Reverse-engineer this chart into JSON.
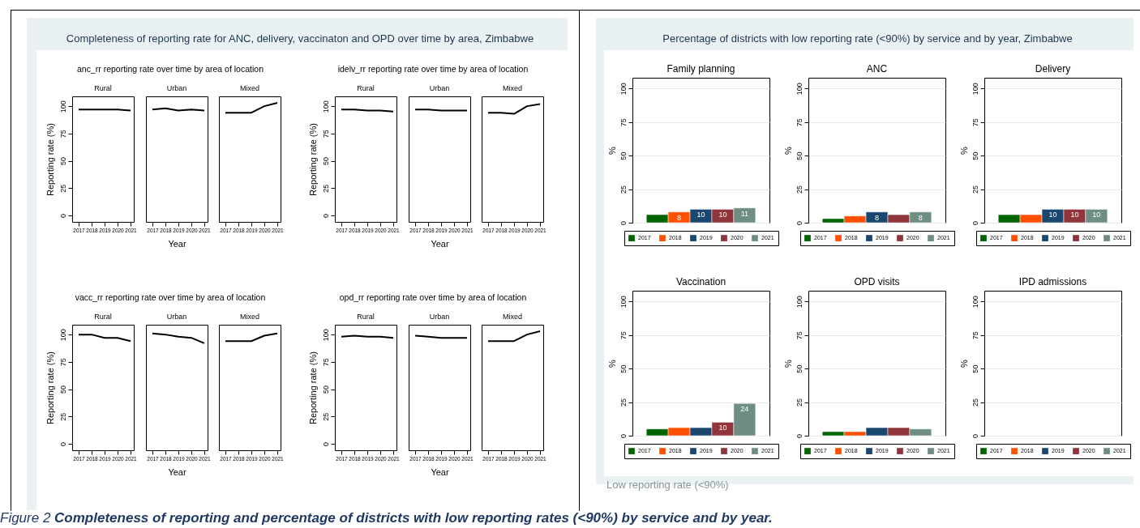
{
  "chart_data": [
    {
      "type": "line",
      "title": "Rural",
      "ylabel": "Reporting rate (%)",
      "x": [
        2017,
        2018,
        2019,
        2020,
        2021
      ],
      "xlim": [
        2016.5,
        2021.25
      ],
      "xticks": [
        2017,
        2018,
        2019,
        2020,
        2021
      ],
      "ylim": [
        -6,
        109
      ],
      "yticks": [
        0,
        25,
        50,
        75,
        100
      ],
      "annotations": [
        "Completeness of reporting rate for ANC, delivery, vaccinaton and OPD over time by area, Zimbabwe",
        "anc_rr reporting rate over time by area of location"
      ],
      "series": [
        {
          "color": "#000000",
          "values": [
            97,
            97,
            97,
            97,
            96
          ]
        }
      ]
    },
    {
      "type": "line",
      "title": "Urban",
      "xlabel": "Year",
      "x": [
        2017,
        2018,
        2019,
        2020,
        2021
      ],
      "xlim": [
        2016.5,
        2021.25
      ],
      "xticks": [
        2017,
        2018,
        2019,
        2020,
        2021
      ],
      "ylim": [
        -6,
        109
      ],
      "yticks": [
        0,
        25,
        50,
        75,
        100
      ],
      "tick_labels": "x",
      "series": [
        {
          "color": "#000000",
          "values": [
            97,
            98,
            96,
            97,
            96
          ]
        }
      ]
    },
    {
      "type": "line",
      "title": "Mixed",
      "x": [
        2017,
        2018,
        2019,
        2020,
        2021
      ],
      "xlim": [
        2016.5,
        2021.25
      ],
      "xticks": [
        2017,
        2018,
        2019,
        2020,
        2021
      ],
      "ylim": [
        -6,
        109
      ],
      "yticks": [
        0,
        25,
        50,
        75,
        100
      ],
      "tick_labels": "x",
      "series": [
        {
          "color": "#000000",
          "values": [
            94,
            94,
            94,
            100,
            103
          ]
        }
      ]
    },
    {
      "type": "line",
      "title": "Rural",
      "ylabel": "Reporting rate (%)",
      "x": [
        2017,
        2018,
        2019,
        2020,
        2021
      ],
      "xlim": [
        2016.5,
        2021.25
      ],
      "xticks": [
        2017,
        2018,
        2019,
        2020,
        2021
      ],
      "ylim": [
        -6,
        109
      ],
      "yticks": [
        0,
        25,
        50,
        75,
        100
      ],
      "annotations": [
        "idelv_rr reporting rate over time by area of location"
      ],
      "series": [
        {
          "color": "#000000",
          "values": [
            97,
            97,
            96,
            96,
            95
          ]
        }
      ]
    },
    {
      "type": "line",
      "title": "Urban",
      "xlabel": "Year",
      "x": [
        2017,
        2018,
        2019,
        2020,
        2021
      ],
      "xlim": [
        2016.5,
        2021.25
      ],
      "xticks": [
        2017,
        2018,
        2019,
        2020,
        2021
      ],
      "ylim": [
        -6,
        109
      ],
      "yticks": [
        0,
        25,
        50,
        75,
        100
      ],
      "tick_labels": "x",
      "series": [
        {
          "color": "#000000",
          "values": [
            97,
            97,
            96,
            96,
            96
          ]
        }
      ]
    },
    {
      "type": "line",
      "title": "Mixed",
      "x": [
        2017,
        2018,
        2019,
        2020,
        2021
      ],
      "xlim": [
        2016.5,
        2021.25
      ],
      "xticks": [
        2017,
        2018,
        2019,
        2020,
        2021
      ],
      "ylim": [
        -6,
        109
      ],
      "yticks": [
        0,
        25,
        50,
        75,
        100
      ],
      "tick_labels": "x",
      "series": [
        {
          "color": "#000000",
          "values": [
            94,
            94,
            93,
            100,
            102
          ]
        }
      ]
    },
    {
      "type": "line",
      "title": "Rural",
      "ylabel": "Reporting rate (%)",
      "x": [
        2017,
        2018,
        2019,
        2020,
        2021
      ],
      "xlim": [
        2016.5,
        2021.25
      ],
      "xticks": [
        2017,
        2018,
        2019,
        2020,
        2021
      ],
      "ylim": [
        -6,
        109
      ],
      "yticks": [
        0,
        25,
        50,
        75,
        100
      ],
      "annotations": [
        "vacc_rr reporting rate over time by area of location"
      ],
      "series": [
        {
          "color": "#000000",
          "values": [
            100,
            100,
            97,
            97,
            94
          ]
        }
      ]
    },
    {
      "type": "line",
      "title": "Urban",
      "xlabel": "Year",
      "x": [
        2017,
        2018,
        2019,
        2020,
        2021
      ],
      "xlim": [
        2016.5,
        2021.25
      ],
      "xticks": [
        2017,
        2018,
        2019,
        2020,
        2021
      ],
      "ylim": [
        -6,
        109
      ],
      "yticks": [
        0,
        25,
        50,
        75,
        100
      ],
      "tick_labels": "x",
      "series": [
        {
          "color": "#000000",
          "values": [
            101,
            100,
            98,
            97,
            92
          ]
        }
      ]
    },
    {
      "type": "line",
      "title": "Mixed",
      "x": [
        2017,
        2018,
        2019,
        2020,
        2021
      ],
      "xlim": [
        2016.5,
        2021.25
      ],
      "xticks": [
        2017,
        2018,
        2019,
        2020,
        2021
      ],
      "ylim": [
        -6,
        109
      ],
      "yticks": [
        0,
        25,
        50,
        75,
        100
      ],
      "tick_labels": "x",
      "series": [
        {
          "color": "#000000",
          "values": [
            94,
            94,
            94,
            99,
            101
          ]
        }
      ]
    },
    {
      "type": "line",
      "title": "Rural",
      "ylabel": "Reporting rate (%)",
      "x": [
        2017,
        2018,
        2019,
        2020,
        2021
      ],
      "xlim": [
        2016.5,
        2021.25
      ],
      "xticks": [
        2017,
        2018,
        2019,
        2020,
        2021
      ],
      "ylim": [
        -6,
        109
      ],
      "yticks": [
        0,
        25,
        50,
        75,
        100
      ],
      "annotations": [
        "opd_rr reporting rate over time by area of location"
      ],
      "series": [
        {
          "color": "#000000",
          "values": [
            98,
            99,
            98,
            98,
            97
          ]
        }
      ]
    },
    {
      "type": "line",
      "title": "Urban",
      "xlabel": "Year",
      "x": [
        2017,
        2018,
        2019,
        2020,
        2021
      ],
      "xlim": [
        2016.5,
        2021.25
      ],
      "xticks": [
        2017,
        2018,
        2019,
        2020,
        2021
      ],
      "ylim": [
        -6,
        109
      ],
      "yticks": [
        0,
        25,
        50,
        75,
        100
      ],
      "tick_labels": "x",
      "series": [
        {
          "color": "#000000",
          "values": [
            99,
            98,
            97,
            97,
            97
          ]
        }
      ]
    },
    {
      "type": "line",
      "title": "Mixed",
      "x": [
        2017,
        2018,
        2019,
        2020,
        2021
      ],
      "xlim": [
        2016.5,
        2021.25
      ],
      "xticks": [
        2017,
        2018,
        2019,
        2020,
        2021
      ],
      "ylim": [
        -6,
        109
      ],
      "yticks": [
        0,
        25,
        50,
        75,
        100
      ],
      "tick_labels": "x",
      "series": [
        {
          "color": "#000000",
          "values": [
            94,
            94,
            94,
            100,
            103
          ]
        }
      ]
    },
    {
      "type": "bar",
      "title": "Family planning",
      "ylabel": "%",
      "categories": [
        null
      ],
      "ylim": [
        0,
        108
      ],
      "yticks": [
        0,
        25,
        50,
        75,
        100
      ],
      "grid": "y",
      "legend": "bottom",
      "annotations": [
        "Percentage of districts with low reporting rate (<90%) by service and by year, Zimbabwe",
        "Low reporting rate (<90%)",
        "Figure 2",
        "Completeness of reporting and percentage of districts with low reporting rates (<90%) by service and by year."
      ],
      "series": [
        {
          "name": "2017",
          "color": "#006400",
          "values": [
            6
          ]
        },
        {
          "name": "2018",
          "color": "#ff4f00",
          "values": [
            8
          ],
          "value_labels": [
            "8"
          ]
        },
        {
          "name": "2019",
          "color": "#1a476f",
          "values": [
            10
          ],
          "value_labels": [
            "10"
          ]
        },
        {
          "name": "2020",
          "color": "#90353b",
          "values": [
            10
          ],
          "value_labels": [
            "10"
          ]
        },
        {
          "name": "2021",
          "color": "#6e8e84",
          "values": [
            11
          ],
          "value_labels": [
            "11"
          ]
        }
      ]
    },
    {
      "type": "bar",
      "title": "ANC",
      "ylabel": "%",
      "categories": [
        null
      ],
      "ylim": [
        0,
        108
      ],
      "yticks": [
        0,
        25,
        50,
        75,
        100
      ],
      "grid": "y",
      "legend": "bottom",
      "series": [
        {
          "name": "2017",
          "color": "#006400",
          "values": [
            3
          ]
        },
        {
          "name": "2018",
          "color": "#ff4f00",
          "values": [
            5
          ]
        },
        {
          "name": "2019",
          "color": "#1a476f",
          "values": [
            8
          ],
          "value_labels": [
            "8"
          ]
        },
        {
          "name": "2020",
          "color": "#90353b",
          "values": [
            6
          ]
        },
        {
          "name": "2021",
          "color": "#6e8e84",
          "values": [
            8
          ],
          "value_labels": [
            "8"
          ]
        }
      ]
    },
    {
      "type": "bar",
      "title": "Delivery",
      "ylabel": "%",
      "categories": [
        null
      ],
      "ylim": [
        0,
        108
      ],
      "yticks": [
        0,
        25,
        50,
        75,
        100
      ],
      "grid": "y",
      "legend": "bottom",
      "series": [
        {
          "name": "2017",
          "color": "#006400",
          "values": [
            6
          ]
        },
        {
          "name": "2018",
          "color": "#ff4f00",
          "values": [
            6
          ]
        },
        {
          "name": "2019",
          "color": "#1a476f",
          "values": [
            10
          ],
          "value_labels": [
            "10"
          ]
        },
        {
          "name": "2020",
          "color": "#90353b",
          "values": [
            10
          ],
          "value_labels": [
            "10"
          ]
        },
        {
          "name": "2021",
          "color": "#6e8e84",
          "values": [
            10
          ],
          "value_labels": [
            "10"
          ]
        }
      ]
    },
    {
      "type": "bar",
      "title": "Vaccination",
      "ylabel": "%",
      "categories": [
        null
      ],
      "ylim": [
        0,
        108
      ],
      "yticks": [
        0,
        25,
        50,
        75,
        100
      ],
      "grid": "y",
      "legend": "bottom",
      "series": [
        {
          "name": "2017",
          "color": "#006400",
          "values": [
            5
          ]
        },
        {
          "name": "2018",
          "color": "#ff4f00",
          "values": [
            6
          ]
        },
        {
          "name": "2019",
          "color": "#1a476f",
          "values": [
            6
          ]
        },
        {
          "name": "2020",
          "color": "#90353b",
          "values": [
            10
          ],
          "value_labels": [
            "10"
          ]
        },
        {
          "name": "2021",
          "color": "#6e8e84",
          "values": [
            24
          ],
          "value_labels": [
            "24"
          ]
        }
      ]
    },
    {
      "type": "bar",
      "title": "OPD visits",
      "ylabel": "%",
      "categories": [
        null
      ],
      "ylim": [
        0,
        108
      ],
      "yticks": [
        0,
        25,
        50,
        75,
        100
      ],
      "grid": "y",
      "legend": "bottom",
      "series": [
        {
          "name": "2017",
          "color": "#006400",
          "values": [
            3
          ]
        },
        {
          "name": "2018",
          "color": "#ff4f00",
          "values": [
            3
          ]
        },
        {
          "name": "2019",
          "color": "#1a476f",
          "values": [
            6
          ]
        },
        {
          "name": "2020",
          "color": "#90353b",
          "values": [
            6
          ]
        },
        {
          "name": "2021",
          "color": "#6e8e84",
          "values": [
            5
          ]
        }
      ]
    },
    {
      "type": "bar",
      "title": "IPD admissions",
      "ylabel": "%",
      "categories": [
        null
      ],
      "ylim": [
        0,
        108
      ],
      "yticks": [
        0,
        25,
        50,
        75,
        100
      ],
      "grid": "y",
      "legend": "bottom",
      "series": [
        {
          "name": "2017",
          "color": "#006400",
          "values": [
            null
          ]
        },
        {
          "name": "2018",
          "color": "#ff4f00",
          "values": [
            null
          ]
        },
        {
          "name": "2019",
          "color": "#1a476f",
          "values": [
            null
          ]
        },
        {
          "name": "2020",
          "color": "#90353b",
          "values": [
            null
          ]
        },
        {
          "name": "2021",
          "color": "#6e8e84",
          "values": [
            null
          ]
        }
      ]
    }
  ]
}
